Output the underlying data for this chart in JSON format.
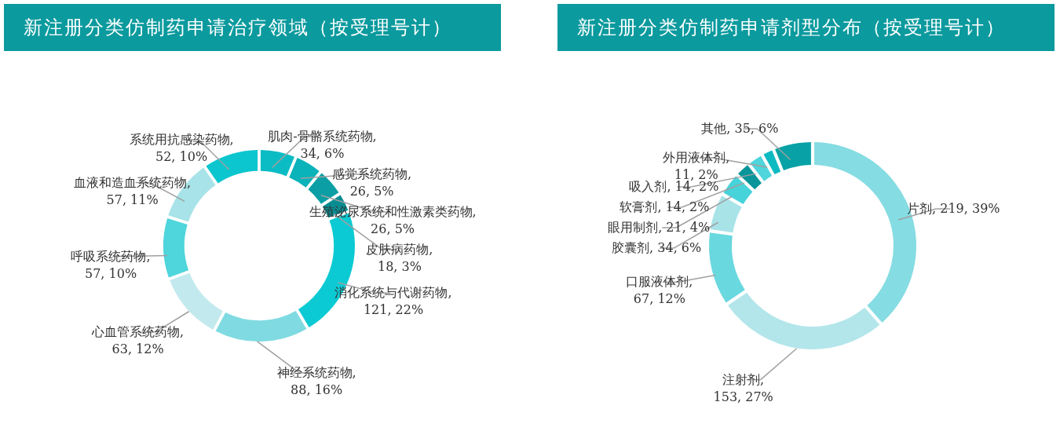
{
  "chart_data": [
    {
      "type": "donut",
      "title": "新注册分类仿制药申请治疗领域（按受理号计）",
      "categories": [
        "肌肉-骨骼系统药物",
        "感觉系统药物",
        "生殖泌尿系统和性激素类药物",
        "皮肤病药物",
        "消化系统与代谢药物",
        "神经系统药物",
        "心血管系统药物",
        "呼吸系统药物",
        "血液和造血系统药物",
        "系统用抗感染药物"
      ],
      "values": [
        34,
        26,
        26,
        18,
        121,
        88,
        63,
        57,
        57,
        52
      ],
      "value_labels": [
        ", 34, 6%",
        ", 26, 5%",
        ", 26, 5%",
        ", 18, 3%",
        ", 121, 22%",
        ", 88, 16%",
        ", 63, 12%",
        ", 57, 10%",
        ", 57, 11%",
        ", 52, 10%"
      ],
      "colors": [
        "#0bbcc4",
        "#0ab2b9",
        "#0b9ea4",
        "#088c91",
        "#0ccad3",
        "#7fdbe1",
        "#c2eaee",
        "#4fd5dc",
        "#a7e3e8",
        "#0bc6ce"
      ]
    },
    {
      "type": "donut",
      "title": "新注册分类仿制药申请剂型分布（按受理号计）",
      "categories": [
        "片剂",
        "注射剂",
        "口服液体剂",
        "胶囊剂",
        "眼用制剂",
        "软膏剂",
        "吸入剂",
        "外用液体剂",
        "其他"
      ],
      "values": [
        219,
        153,
        67,
        34,
        21,
        14,
        14,
        11,
        35
      ],
      "value_labels": [
        ", 219, 39%",
        ", 153, 27%",
        ", 67, 12%",
        ", 34, 6%",
        ", 21, 4%",
        ", 14, 2%",
        ", 14, 2%",
        ", 11, 2%",
        ", 35, 6%"
      ],
      "colors": [
        "#85dce2",
        "#b3e6ea",
        "#6ad8df",
        "#a8e3e8",
        "#47d3da",
        "#09959a",
        "#4fd5dc",
        "#0cbac1",
        "#08a1a6"
      ]
    }
  ]
}
